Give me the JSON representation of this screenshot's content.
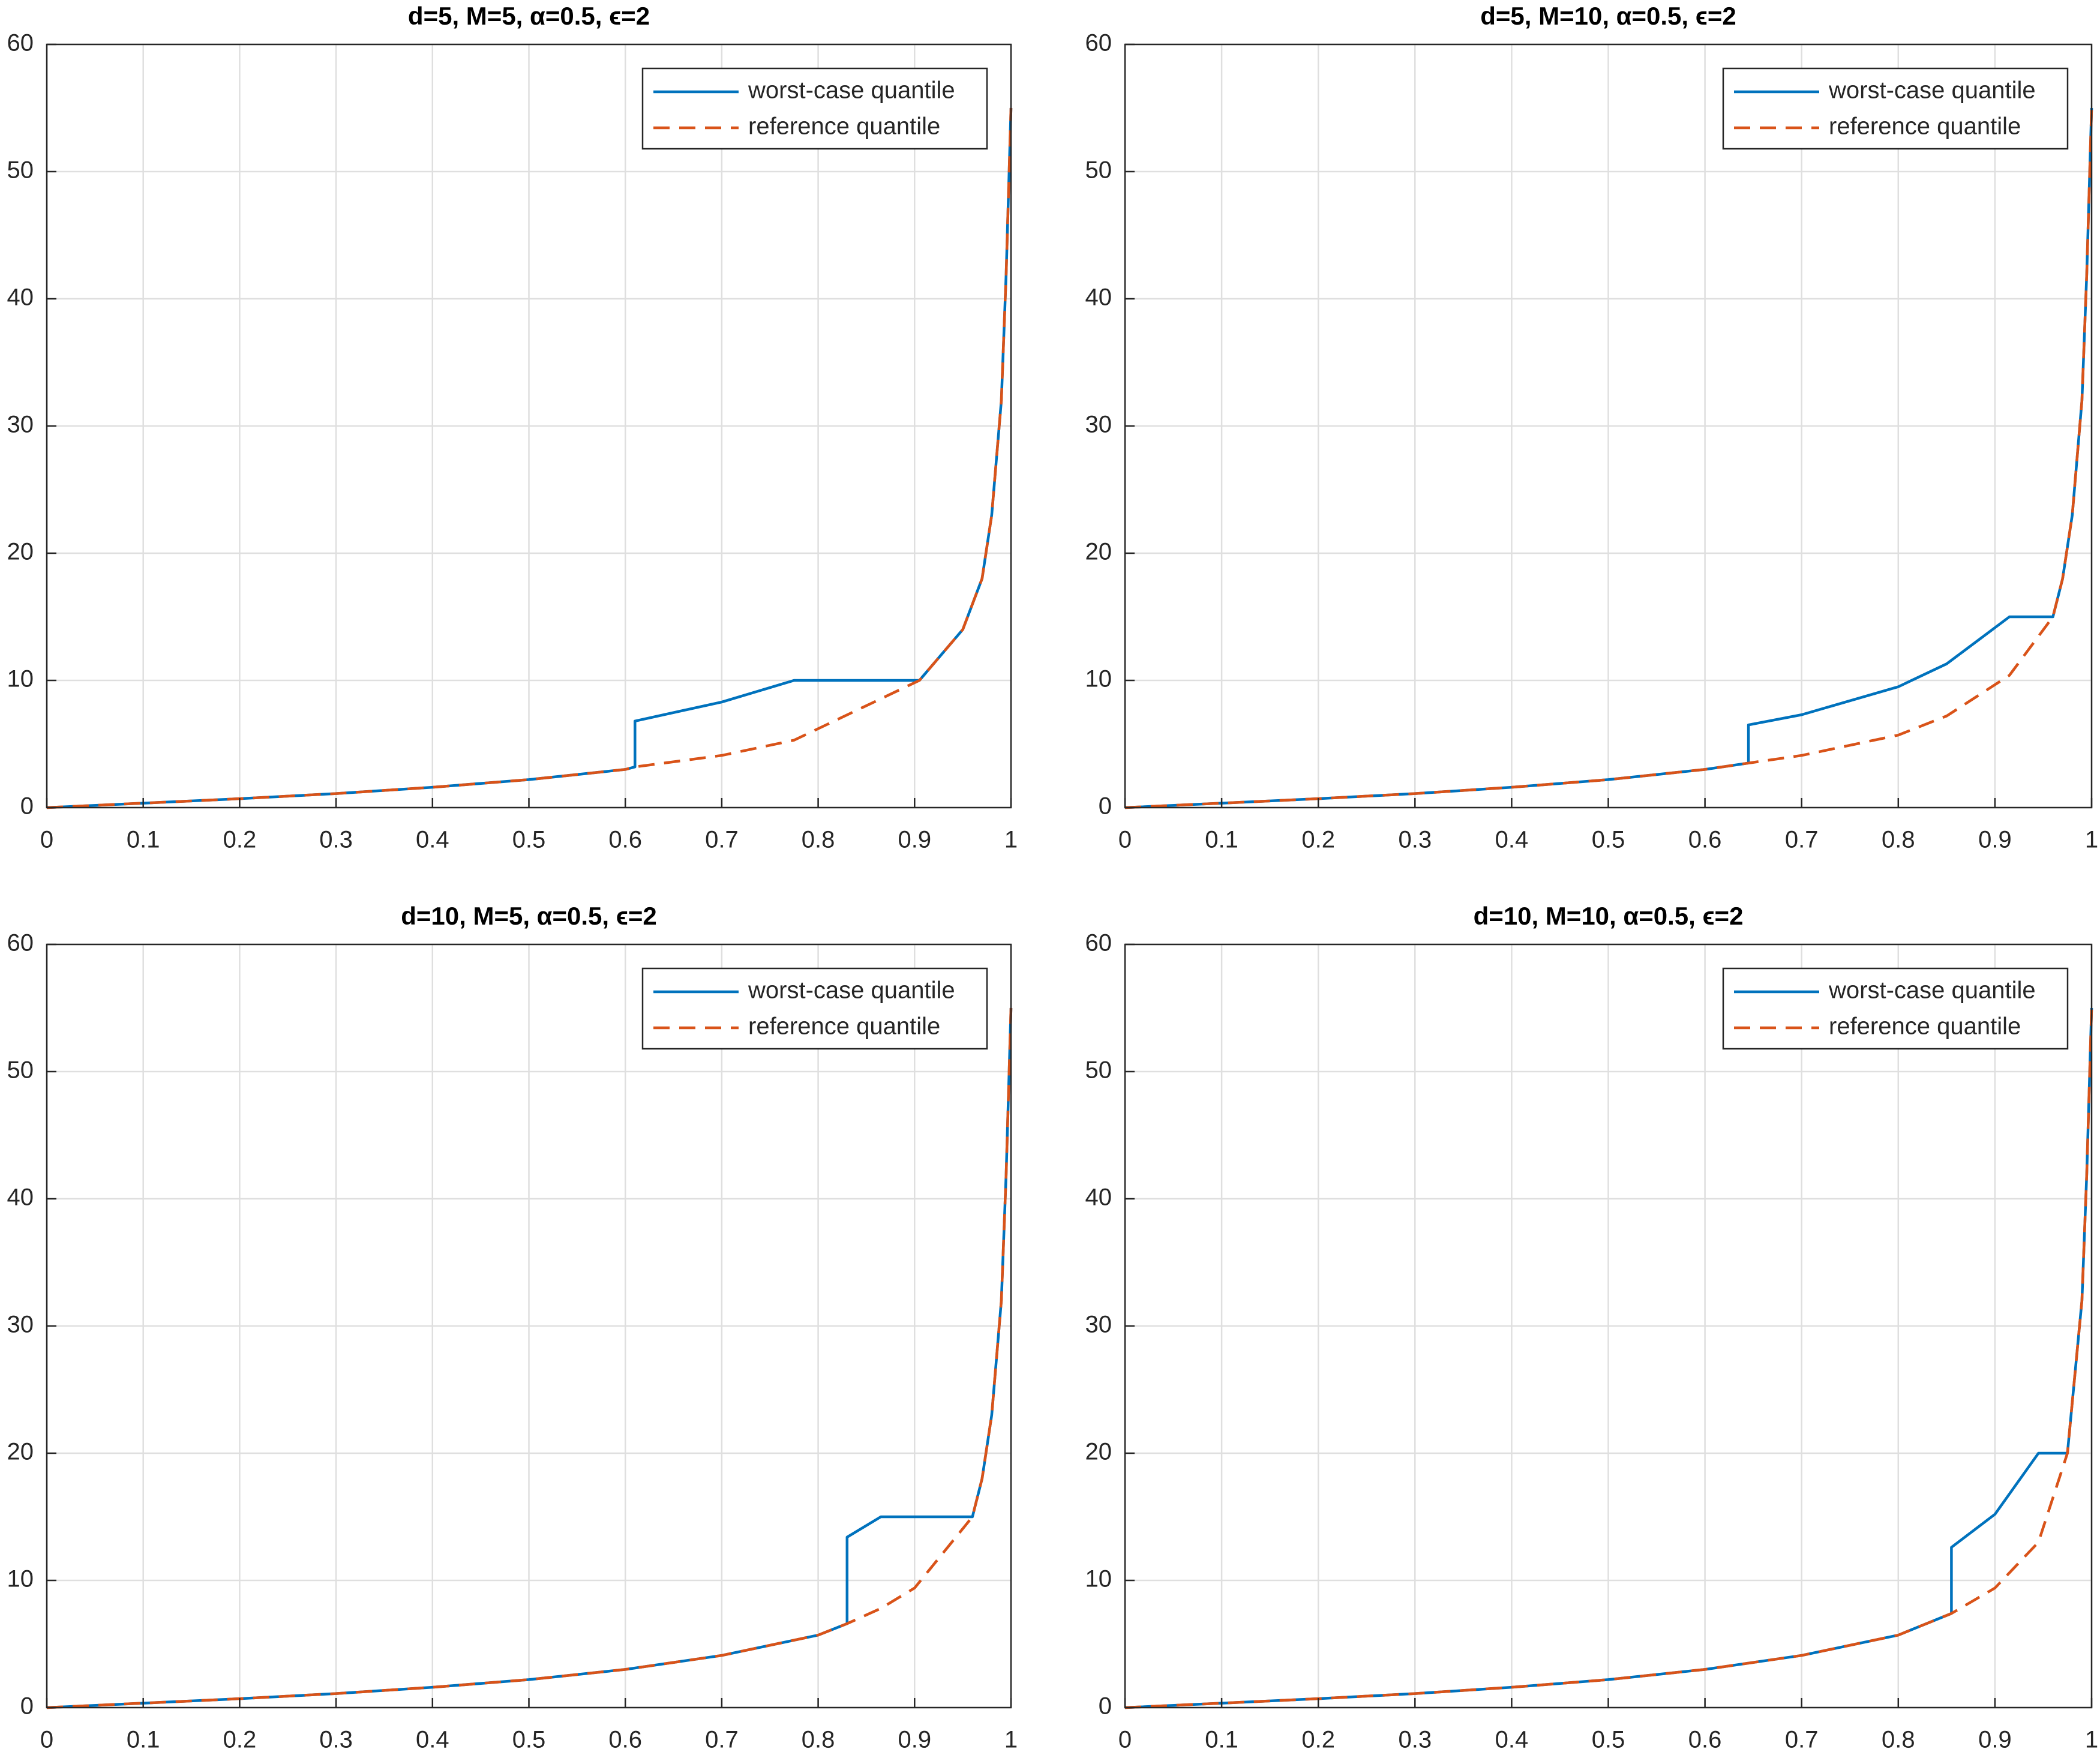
{
  "chart_data": [
    {
      "type": "line",
      "title": "d=5, M=5, α=0.5, ϵ=2",
      "x": [
        0,
        0.1,
        0.2,
        0.3,
        0.4,
        0.5,
        0.6,
        0.61,
        0.61,
        0.7,
        0.775,
        0.905,
        0.95,
        0.97,
        0.98,
        0.99,
        0.995,
        1
      ],
      "series": [
        {
          "name": "worst-case quantile",
          "color": "#0072bd",
          "values": [
            0,
            0.35,
            0.7,
            1.1,
            1.6,
            2.2,
            3.0,
            3.2,
            6.8,
            8.3,
            10,
            10,
            14,
            18,
            23,
            32,
            42,
            55
          ]
        },
        {
          "name": "reference quantile",
          "color": "#d95319",
          "values": [
            0,
            0.35,
            0.7,
            1.1,
            1.6,
            2.2,
            3.0,
            3.2,
            3.2,
            4.1,
            5.3,
            10,
            14,
            18,
            23,
            32,
            42,
            55
          ]
        }
      ],
      "xlim": [
        0,
        1
      ],
      "xticks": [
        0,
        0.1,
        0.2,
        0.3,
        0.4,
        0.5,
        0.6,
        0.7,
        0.8,
        0.9,
        1
      ],
      "ylim": [
        0,
        60
      ],
      "yticks": [
        0,
        10,
        20,
        30,
        40,
        50,
        60
      ],
      "grid": true,
      "legend": "northeast"
    },
    {
      "type": "line",
      "title": "d=5, M=10, α=0.5, ϵ=2",
      "x": [
        0,
        0.1,
        0.2,
        0.3,
        0.4,
        0.5,
        0.6,
        0.645,
        0.645,
        0.7,
        0.8,
        0.85,
        0.915,
        0.96,
        0.97,
        0.98,
        0.99,
        0.995,
        1
      ],
      "series": [
        {
          "name": "worst-case quantile",
          "color": "#0072bd",
          "values": [
            0,
            0.35,
            0.7,
            1.1,
            1.6,
            2.2,
            3.0,
            3.5,
            6.5,
            7.3,
            9.5,
            11.3,
            15,
            15,
            18,
            23,
            32,
            42,
            55
          ]
        },
        {
          "name": "reference quantile",
          "color": "#d95319",
          "values": [
            0,
            0.35,
            0.7,
            1.1,
            1.6,
            2.2,
            3.0,
            3.5,
            3.5,
            4.1,
            5.7,
            7.2,
            10.4,
            15,
            18,
            23,
            32,
            42,
            55
          ]
        }
      ],
      "xlim": [
        0,
        1
      ],
      "xticks": [
        0,
        0.1,
        0.2,
        0.3,
        0.4,
        0.5,
        0.6,
        0.7,
        0.8,
        0.9,
        1
      ],
      "ylim": [
        0,
        60
      ],
      "yticks": [
        0,
        10,
        20,
        30,
        40,
        50,
        60
      ],
      "grid": true,
      "legend": "northeast"
    },
    {
      "type": "line",
      "title": "d=10, M=5, α=0.5, ϵ=2",
      "x": [
        0,
        0.1,
        0.2,
        0.3,
        0.4,
        0.5,
        0.6,
        0.7,
        0.8,
        0.83,
        0.83,
        0.865,
        0.9,
        0.96,
        0.97,
        0.98,
        0.99,
        0.995,
        1
      ],
      "series": [
        {
          "name": "worst-case quantile",
          "color": "#0072bd",
          "values": [
            0,
            0.35,
            0.7,
            1.1,
            1.6,
            2.2,
            3.0,
            4.1,
            5.7,
            6.6,
            13.4,
            15,
            15,
            15,
            18,
            23,
            32,
            42,
            55
          ]
        },
        {
          "name": "reference quantile",
          "color": "#d95319",
          "values": [
            0,
            0.35,
            0.7,
            1.1,
            1.6,
            2.2,
            3.0,
            4.1,
            5.7,
            6.6,
            6.6,
            7.8,
            9.4,
            15,
            18,
            23,
            32,
            42,
            55
          ]
        }
      ],
      "xlim": [
        0,
        1
      ],
      "xticks": [
        0,
        0.1,
        0.2,
        0.3,
        0.4,
        0.5,
        0.6,
        0.7,
        0.8,
        0.9,
        1
      ],
      "ylim": [
        0,
        60
      ],
      "yticks": [
        0,
        10,
        20,
        30,
        40,
        50,
        60
      ],
      "grid": true,
      "legend": "northeast"
    },
    {
      "type": "line",
      "title": "d=10, M=10, α=0.5, ϵ=2",
      "x": [
        0,
        0.1,
        0.2,
        0.3,
        0.4,
        0.5,
        0.6,
        0.7,
        0.8,
        0.855,
        0.855,
        0.9,
        0.945,
        0.975,
        0.99,
        0.995,
        1
      ],
      "series": [
        {
          "name": "worst-case quantile",
          "color": "#0072bd",
          "values": [
            0,
            0.35,
            0.7,
            1.1,
            1.6,
            2.2,
            3.0,
            4.1,
            5.7,
            7.4,
            12.6,
            15.2,
            20,
            20,
            32,
            42,
            55
          ]
        },
        {
          "name": "reference quantile",
          "color": "#d95319",
          "values": [
            0,
            0.35,
            0.7,
            1.1,
            1.6,
            2.2,
            3.0,
            4.1,
            5.7,
            7.4,
            7.4,
            9.4,
            13,
            20,
            32,
            42,
            55
          ]
        }
      ],
      "xlim": [
        0,
        1
      ],
      "xticks": [
        0,
        0.1,
        0.2,
        0.3,
        0.4,
        0.5,
        0.6,
        0.7,
        0.8,
        0.9,
        1
      ],
      "ylim": [
        0,
        60
      ],
      "yticks": [
        0,
        10,
        20,
        30,
        40,
        50,
        60
      ],
      "grid": true,
      "legend": "northeast"
    }
  ]
}
